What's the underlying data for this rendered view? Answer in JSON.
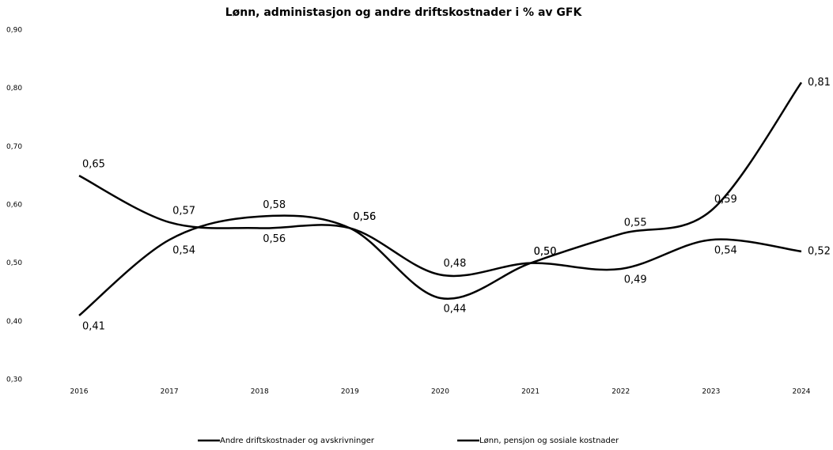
{
  "chart_data": {
    "type": "line",
    "title": "Lønn, administasjon og andre driftskostnader i % av GFK",
    "categories": [
      "2016",
      "2017",
      "2018",
      "2019",
      "2020",
      "2021",
      "2022",
      "2023",
      "2024"
    ],
    "series": [
      {
        "name": "Andre driftskostnader og avskrivninger",
        "color": "#000000",
        "values": [
          0.65,
          0.57,
          0.56,
          0.56,
          0.48,
          0.5,
          0.49,
          0.54,
          0.52
        ],
        "value_labels": [
          "0,65",
          "0,57",
          "0,56",
          "0,56",
          "0,48",
          "0,50",
          "0,49",
          "0,54",
          "0,52"
        ]
      },
      {
        "name": "Lønn, pensjon og sosiale kostnader",
        "color": "#000000",
        "values": [
          0.41,
          0.54,
          0.58,
          0.56,
          0.44,
          0.5,
          0.55,
          0.59,
          0.81
        ],
        "value_labels": [
          "0,41",
          "0,54",
          "0,58",
          "0,56",
          "0,44",
          "0,50",
          "0,55",
          "0,59",
          "0,81"
        ]
      }
    ],
    "ylim": [
      0.3,
      0.9
    ],
    "yticks": [
      {
        "value": 0.3,
        "label": "0,30"
      },
      {
        "value": 0.4,
        "label": "0,40"
      },
      {
        "value": 0.5,
        "label": "0,50"
      },
      {
        "value": 0.6,
        "label": "0,60"
      },
      {
        "value": 0.7,
        "label": "0,70"
      },
      {
        "value": 0.8,
        "label": "0,80"
      },
      {
        "value": 0.9,
        "label": "0,90"
      }
    ]
  }
}
